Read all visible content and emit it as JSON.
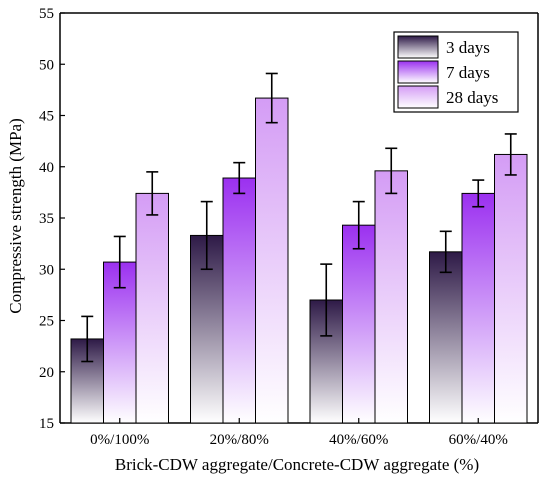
{
  "chart_data": {
    "type": "bar",
    "xlabel": "Brick-CDW aggregate/Concrete-CDW aggregate (%)",
    "ylabel": "Compressive strength (MPa)",
    "ylim": [
      15,
      55
    ],
    "yticks": [
      15,
      20,
      25,
      30,
      35,
      40,
      45,
      50,
      55
    ],
    "categories": [
      "0%/100%",
      "20%/80%",
      "40%/60%",
      "60%/40%"
    ],
    "series": [
      {
        "name": "3 days",
        "values": [
          23.2,
          33.3,
          27.0,
          31.7
        ],
        "errors": [
          2.2,
          3.3,
          3.5,
          2.0
        ],
        "color_top": "#2e1a47",
        "color_bottom": "#ffffff"
      },
      {
        "name": "7 days",
        "values": [
          30.7,
          38.9,
          34.3,
          37.4
        ],
        "errors": [
          2.5,
          1.5,
          2.3,
          1.3
        ],
        "color_top": "#9b30f0",
        "color_bottom": "#ffffff"
      },
      {
        "name": "28 days",
        "values": [
          37.4,
          46.7,
          39.6,
          41.2
        ],
        "errors": [
          2.1,
          2.4,
          2.2,
          2.0
        ],
        "color_top": "#d49cf5",
        "color_bottom": "#ffffff"
      }
    ],
    "legend_position": "top-right",
    "grid": false
  }
}
